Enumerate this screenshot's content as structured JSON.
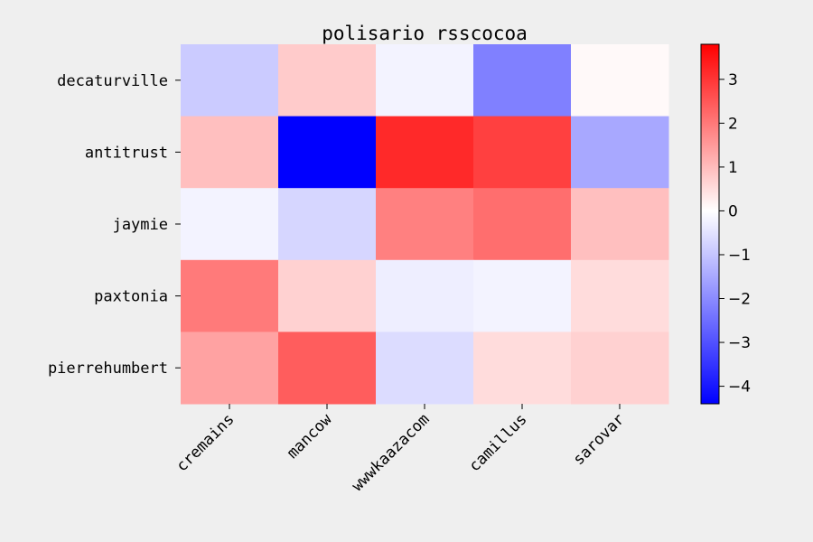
{
  "chart_data": {
    "type": "heatmap",
    "title": "polisario rsscocoa",
    "xlabel": "",
    "ylabel": "",
    "x_categories": [
      "cremains",
      "mancow",
      "wwwkaazacom",
      "camillus",
      "sarovar"
    ],
    "y_categories": [
      "decaturville",
      "antitrust",
      "jaymie",
      "paxtonia",
      "pierrehumbert"
    ],
    "values": [
      [
        -0.9,
        0.9,
        -0.2,
        -2.2,
        0.1
      ],
      [
        1.1,
        -4.4,
        3.7,
        3.3,
        -1.5
      ],
      [
        -0.2,
        -0.7,
        2.2,
        2.5,
        1.1
      ],
      [
        2.3,
        0.8,
        -0.3,
        -0.2,
        0.6
      ],
      [
        1.6,
        2.8,
        -0.6,
        0.6,
        0.8
      ]
    ],
    "colormap": "bwr",
    "vmin": -4.4,
    "vmax": 3.8,
    "colorbar_ticks": [
      "3",
      "2",
      "1",
      "0",
      "−1",
      "−2",
      "−3",
      "−4"
    ],
    "colorbar_tick_values": [
      3,
      2,
      1,
      0,
      -1,
      -2,
      -3,
      -4
    ],
    "colors": {
      "low": "#0000ff",
      "mid": "#ffffff",
      "high": "#ff0000",
      "background": "#efefef"
    }
  }
}
